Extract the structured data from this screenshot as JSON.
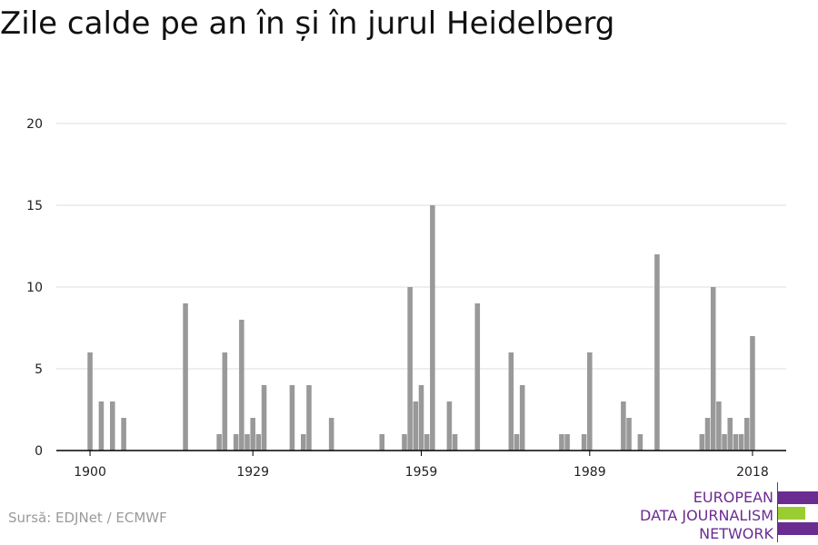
{
  "title": "Zile calde pe an în și în jurul Heidelberg",
  "source": "Sursă: EDJNet / ECMWF",
  "logo": {
    "lines": [
      "EUROPEAN",
      "DATA JOURNALISM",
      "NETWORK"
    ],
    "text_color": "#6a2c91",
    "bar_colors": [
      "#6a2c91",
      "#9acd32",
      "#6a2c91"
    ]
  },
  "colors": {
    "bar": "#999999",
    "grid": "#dddddd",
    "axis": "#000000"
  },
  "chart_data": {
    "type": "bar",
    "title": "Zile calde pe an în și în jurul Heidelberg",
    "xlabel": "",
    "ylabel": "",
    "x_ticks": [
      1900,
      1929,
      1959,
      1989,
      2018
    ],
    "y_ticks": [
      0,
      5,
      10,
      15,
      20
    ],
    "xlim": [
      1894,
      2024
    ],
    "ylim": [
      0,
      20
    ],
    "grid": true,
    "legend": "none",
    "years": [
      1900,
      1901,
      1902,
      1903,
      1904,
      1905,
      1906,
      1907,
      1908,
      1909,
      1910,
      1911,
      1912,
      1913,
      1914,
      1915,
      1916,
      1917,
      1918,
      1919,
      1920,
      1921,
      1922,
      1923,
      1924,
      1925,
      1926,
      1927,
      1928,
      1929,
      1930,
      1931,
      1932,
      1933,
      1934,
      1935,
      1936,
      1937,
      1938,
      1939,
      1940,
      1941,
      1942,
      1943,
      1944,
      1945,
      1946,
      1947,
      1948,
      1949,
      1950,
      1951,
      1952,
      1953,
      1954,
      1955,
      1956,
      1957,
      1958,
      1959,
      1960,
      1961,
      1962,
      1963,
      1964,
      1965,
      1966,
      1967,
      1968,
      1969,
      1970,
      1971,
      1972,
      1973,
      1974,
      1975,
      1976,
      1977,
      1978,
      1979,
      1980,
      1981,
      1982,
      1983,
      1984,
      1985,
      1986,
      1987,
      1988,
      1989,
      1990,
      1991,
      1992,
      1993,
      1994,
      1995,
      1996,
      1997,
      1998,
      1999,
      2000,
      2001,
      2002,
      2003,
      2004,
      2005,
      2006,
      2007,
      2008,
      2009,
      2010,
      2011,
      2012,
      2013,
      2014,
      2015,
      2016,
      2017,
      2018
    ],
    "values": [
      6,
      0,
      3,
      0,
      3,
      0,
      2,
      0,
      0,
      0,
      0,
      0,
      0,
      0,
      0,
      0,
      0,
      9,
      0,
      0,
      0,
      0,
      0,
      1,
      6,
      0,
      1,
      8,
      1,
      2,
      1,
      4,
      0,
      0,
      0,
      0,
      4,
      0,
      1,
      4,
      0,
      0,
      0,
      2,
      0,
      0,
      0,
      0,
      0,
      0,
      0,
      0,
      1,
      0,
      0,
      0,
      1,
      10,
      3,
      4,
      1,
      15,
      0,
      0,
      3,
      1,
      0,
      0,
      0,
      9,
      0,
      0,
      0,
      0,
      0,
      6,
      1,
      4,
      0,
      0,
      0,
      0,
      0,
      0,
      1,
      1,
      0,
      0,
      1,
      6,
      0,
      0,
      0,
      0,
      0,
      3,
      2,
      0,
      1,
      0,
      0,
      12,
      0,
      0,
      0,
      0,
      0,
      0,
      0,
      1,
      2,
      10,
      3,
      1,
      2,
      1,
      1,
      2,
      7
    ]
  }
}
